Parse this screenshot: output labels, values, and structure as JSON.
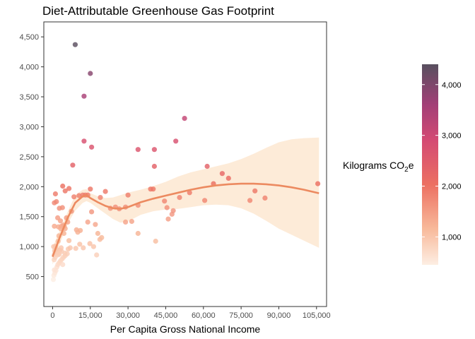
{
  "chart_data": {
    "type": "scatter",
    "title": "Diet-Attributable Greenhouse Gas Footprint",
    "xlabel": "Per Capita Gross National Income",
    "ylabel": "",
    "xlim": [
      -3500,
      109000
    ],
    "ylim": [
      0,
      4750
    ],
    "xticks": [
      0,
      15000,
      30000,
      45000,
      60000,
      75000,
      90000,
      105000
    ],
    "xtick_labels": [
      "0",
      "15,000",
      "30,000",
      "45,000",
      "60,000",
      "75,000",
      "90,000",
      "105,000"
    ],
    "yticks": [
      500,
      1000,
      1500,
      2000,
      2500,
      3000,
      3500,
      4000,
      4500
    ],
    "ytick_labels": [
      "500",
      "1,000",
      "1,500",
      "2,000",
      "2,500",
      "3,000",
      "3,500",
      "4,000",
      "4,500"
    ],
    "grid": false,
    "legend": {
      "title_main": "Kilograms CO",
      "title_sub": "2",
      "title_end": "e",
      "placement": "right",
      "range": [
        450,
        4400
      ],
      "ticks": [
        1000,
        2000,
        3000,
        4000
      ],
      "tick_labels": [
        "1,000",
        "2,000",
        "3,000",
        "4,000"
      ],
      "colors": [
        "#fdeee3",
        "#f8b99a",
        "#ec7062",
        "#d44a73",
        "#a23f77",
        "#58505f"
      ]
    },
    "trend": {
      "color": "#ec8a60",
      "band_color": "#fdebd8",
      "x": [
        0,
        3000,
        6000,
        9000,
        12000,
        13500,
        15000,
        18000,
        21000,
        24000,
        27000,
        30000,
        35000,
        40000,
        45000,
        50000,
        55000,
        60000,
        65000,
        70000,
        75000,
        80000,
        85000,
        90000,
        95000,
        100000,
        106000
      ],
      "y": [
        830,
        1170,
        1480,
        1730,
        1840,
        1860,
        1810,
        1740,
        1680,
        1640,
        1630,
        1660,
        1740,
        1800,
        1850,
        1900,
        1950,
        1990,
        2020,
        2040,
        2050,
        2050,
        2040,
        2020,
        1990,
        1950,
        1890
      ],
      "lower": [
        700,
        1060,
        1380,
        1600,
        1730,
        1760,
        1730,
        1640,
        1550,
        1460,
        1400,
        1420,
        1530,
        1590,
        1620,
        1630,
        1660,
        1690,
        1700,
        1690,
        1640,
        1550,
        1430,
        1300,
        1200,
        1100,
        980
      ],
      "upper": [
        980,
        1290,
        1580,
        1860,
        1950,
        1960,
        1890,
        1840,
        1810,
        1820,
        1860,
        1900,
        1950,
        2010,
        2080,
        2170,
        2240,
        2290,
        2340,
        2390,
        2460,
        2550,
        2650,
        2740,
        2790,
        2810,
        2820
      ]
    },
    "series": [
      {
        "x": [
          9000,
          15000,
          12500,
          52500,
          12500,
          49000,
          15500,
          34000,
          40500,
          8000,
          40500,
          61500,
          67500,
          70000,
          105500,
          64000,
          4000,
          6500,
          5000,
          10500,
          12000,
          14000,
          15000,
          19000,
          21000,
          26500,
          30000,
          34000,
          39000,
          40000,
          44500,
          45500,
          47500,
          50500,
          54500,
          60500,
          78500,
          80500,
          84500,
          23000,
          25000,
          29000,
          31500,
          700,
          700,
          1100,
          1500,
          2000,
          2300,
          2700,
          3100,
          3500,
          3900,
          4200,
          4600,
          5000,
          5500,
          6000,
          6500,
          7500,
          8500,
          9500,
          10000,
          11000,
          13000,
          14000,
          15500,
          17000,
          18000,
          19500,
          3200,
          2500,
          4500,
          1200,
          2200,
          900,
          600,
          1400,
          1800,
          2600,
          3600,
          4900,
          6200,
          7000,
          9200,
          10800,
          12200,
          14800,
          16300,
          17500,
          18800,
          29000,
          34000,
          41000,
          46000,
          48000
        ],
        "y": [
          4370,
          3890,
          3510,
          3140,
          2760,
          2760,
          2660,
          2620,
          2620,
          2360,
          2340,
          2340,
          2220,
          2140,
          2050,
          2050,
          2010,
          1970,
          1930,
          1850,
          1860,
          1860,
          1960,
          1820,
          1920,
          1630,
          1860,
          1690,
          1960,
          1960,
          1760,
          1650,
          1540,
          1820,
          1900,
          1770,
          1770,
          1930,
          1810,
          1640,
          1660,
          1660,
          1420,
          1340,
          1730,
          1880,
          1750,
          1480,
          1330,
          1640,
          1430,
          1340,
          1650,
          1360,
          1340,
          1300,
          1480,
          1410,
          1100,
          1590,
          1830,
          1280,
          1240,
          1270,
          1860,
          1410,
          1580,
          1370,
          1220,
          1150,
          1300,
          1180,
          1220,
          1010,
          1090,
          880,
          860,
          960,
          920,
          870,
          920,
          890,
          960,
          980,
          970,
          1040,
          980,
          1050,
          1000,
          860,
          1120,
          1410,
          1220,
          1090,
          1460,
          1600
        ],
        "values": [
          4370,
          3890,
          3510,
          3140,
          2760,
          2760,
          2660,
          2620,
          2620,
          2360,
          2340,
          2340,
          2220,
          2140,
          2050,
          2050,
          2010,
          1970,
          1930,
          1850,
          1860,
          1860,
          1960,
          1820,
          1920,
          1630,
          1860,
          1690,
          1960,
          1960,
          1760,
          1650,
          1540,
          1820,
          1900,
          1770,
          1770,
          1930,
          1810,
          1640,
          1660,
          1660,
          1420,
          1340,
          1730,
          1880,
          1750,
          1480,
          1330,
          1640,
          1430,
          1340,
          1650,
          1360,
          1340,
          1300,
          1480,
          1410,
          1100,
          1590,
          1830,
          1280,
          1240,
          1270,
          1860,
          1410,
          1580,
          1370,
          1220,
          1150,
          1300,
          1180,
          1220,
          1010,
          1090,
          880,
          860,
          960,
          920,
          870,
          920,
          890,
          960,
          980,
          970,
          1040,
          980,
          1050,
          1000,
          860,
          1120,
          1410,
          1220,
          1090,
          1460,
          1600
        ]
      },
      {
        "x": [
          300,
          500,
          900,
          1300,
          1700,
          2100,
          2600,
          3100,
          3700,
          4300,
          5000,
          5800,
          600,
          1000,
          1500,
          2000,
          2900,
          3400,
          4000,
          400,
          800,
          1600,
          2400,
          700
        ],
        "y": [
          450,
          520,
          560,
          600,
          660,
          700,
          730,
          760,
          790,
          820,
          850,
          880,
          780,
          820,
          900,
          860,
          940,
          980,
          700,
          1000,
          930,
          950,
          890,
          610
        ],
        "values": [
          450,
          520,
          560,
          600,
          660,
          700,
          730,
          760,
          790,
          820,
          850,
          880,
          780,
          820,
          900,
          860,
          940,
          980,
          700,
          1000,
          930,
          950,
          890,
          610
        ]
      }
    ]
  }
}
